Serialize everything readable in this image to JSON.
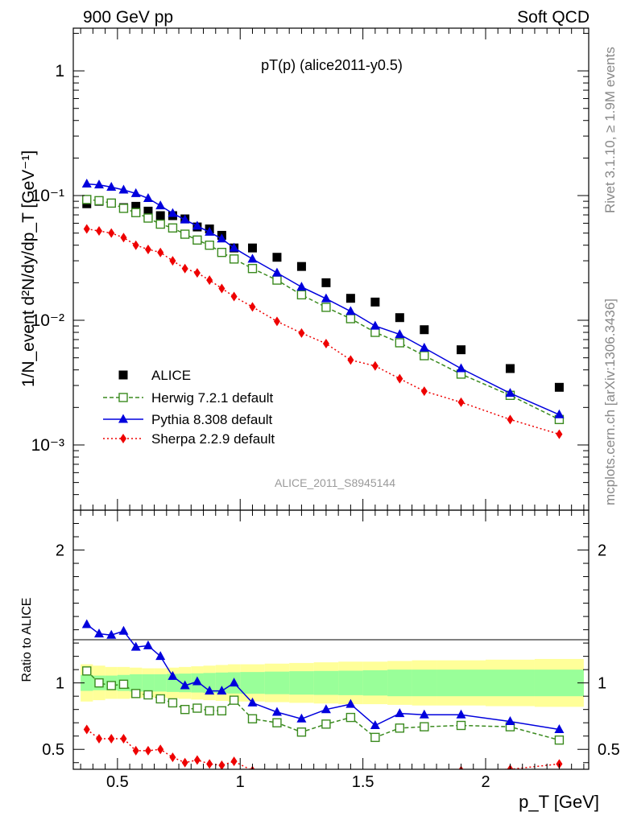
{
  "header": {
    "left": "900 GeV pp",
    "right": "Soft QCD"
  },
  "side_text": {
    "upper": "Rivet 3.1.10, ≥ 1.9M events",
    "lower": "mcplots.cern.ch [arXiv:1306.3436]"
  },
  "watermark": "ALICE_2011_S8945144",
  "chart_data": [
    {
      "type": "scatter",
      "title": "pT(p) (alice2011-y0.5)",
      "ylabel": "1/N_event d²N/dy/dp_T [GeV⁻¹]",
      "yscale": "log",
      "xlim": [
        0.32,
        2.42
      ],
      "ylim": [
        0.0003,
        2.2
      ],
      "yticks": [
        0.001,
        0.01,
        0.1,
        1
      ],
      "ytick_labels": [
        "10⁻³",
        "10⁻²",
        "10⁻¹",
        "1"
      ],
      "legend_position": "lower-left",
      "x": [
        0.375,
        0.425,
        0.475,
        0.525,
        0.575,
        0.625,
        0.675,
        0.725,
        0.775,
        0.825,
        0.875,
        0.925,
        0.975,
        1.05,
        1.15,
        1.25,
        1.35,
        1.45,
        1.55,
        1.65,
        1.75,
        1.9,
        2.1,
        2.3
      ],
      "series": [
        {
          "name": "ALICE",
          "color": "#000000",
          "marker": "square-filled",
          "line": "none",
          "values": [
            0.086,
            0.09,
            0.087,
            0.08,
            0.082,
            0.075,
            0.069,
            0.069,
            0.065,
            0.056,
            0.054,
            0.048,
            0.038,
            0.038,
            0.032,
            0.027,
            0.02,
            0.015,
            0.014,
            0.0105,
            0.0084,
            0.0058,
            0.0041,
            0.0029
          ]
        },
        {
          "name": "Herwig 7.2.1 default",
          "color": "#3a8a1e",
          "marker": "square-open",
          "line": "dashed",
          "values": [
            0.093,
            0.091,
            0.087,
            0.079,
            0.073,
            0.066,
            0.059,
            0.055,
            0.049,
            0.044,
            0.04,
            0.035,
            0.031,
            0.026,
            0.021,
            0.016,
            0.0127,
            0.0103,
            0.008,
            0.0066,
            0.0052,
            0.0037,
            0.0025,
            0.0016
          ]
        },
        {
          "name": "Pythia 8.308 default",
          "color": "#0000dd",
          "marker": "triangle-filled",
          "line": "solid",
          "values": [
            0.124,
            0.122,
            0.117,
            0.111,
            0.104,
            0.095,
            0.083,
            0.072,
            0.064,
            0.057,
            0.051,
            0.045,
            0.038,
            0.031,
            0.024,
            0.0185,
            0.0149,
            0.0118,
            0.009,
            0.0077,
            0.006,
            0.0041,
            0.0026,
            0.00175
          ]
        },
        {
          "name": "Sherpa 2.2.9 default",
          "color": "#ee0000",
          "marker": "diamond-filled",
          "line": "dotted",
          "values": [
            0.054,
            0.052,
            0.05,
            0.046,
            0.04,
            0.037,
            0.035,
            0.03,
            0.026,
            0.024,
            0.021,
            0.018,
            0.0155,
            0.0128,
            0.0098,
            0.0079,
            0.0065,
            0.0048,
            0.0043,
            0.0034,
            0.0027,
            0.0022,
            0.0016,
            0.00122
          ]
        }
      ]
    },
    {
      "type": "line",
      "ylabel": "Ratio to ALICE",
      "xlabel": "p_T [GeV]",
      "xlim": [
        0.32,
        2.42
      ],
      "ylim": [
        0.35,
        2.3
      ],
      "xticks": [
        0.5,
        1,
        1.5,
        2
      ],
      "xtick_labels": [
        "0.5",
        "1",
        "1.5",
        "2"
      ],
      "yticks": [
        0.5,
        1,
        2
      ],
      "ytick_labels": [
        "0.5",
        "1",
        "2"
      ],
      "x": [
        0.375,
        0.425,
        0.475,
        0.525,
        0.575,
        0.625,
        0.675,
        0.725,
        0.775,
        0.825,
        0.875,
        0.925,
        0.975,
        1.05,
        1.15,
        1.25,
        1.35,
        1.45,
        1.55,
        1.65,
        1.75,
        1.9,
        2.1,
        2.3
      ],
      "bin_edges": [
        0.35,
        0.4,
        0.45,
        0.5,
        0.55,
        0.6,
        0.65,
        0.7,
        0.75,
        0.8,
        0.85,
        0.9,
        0.95,
        1.0,
        1.1,
        1.2,
        1.3,
        1.4,
        1.5,
        1.6,
        1.7,
        1.8,
        2.0,
        2.2,
        2.4
      ],
      "bands": {
        "inner": {
          "color": "#99ff99",
          "half_width": [
            0.06,
            0.055,
            0.055,
            0.06,
            0.065,
            0.065,
            0.065,
            0.068,
            0.07,
            0.072,
            0.075,
            0.078,
            0.08,
            0.082,
            0.085,
            0.088,
            0.09,
            0.092,
            0.095,
            0.1,
            0.1,
            0.1,
            0.1,
            0.1
          ]
        },
        "outer": {
          "color": "#ffff99",
          "half_width": [
            0.14,
            0.13,
            0.12,
            0.12,
            0.115,
            0.11,
            0.11,
            0.115,
            0.12,
            0.125,
            0.13,
            0.135,
            0.14,
            0.14,
            0.145,
            0.15,
            0.155,
            0.16,
            0.16,
            0.165,
            0.17,
            0.17,
            0.175,
            0.18
          ]
        }
      },
      "series": [
        {
          "name": "Herwig 7.2.1 default",
          "color": "#3a8a1e",
          "marker": "square-open",
          "line": "dashed",
          "values": [
            1.09,
            1.0,
            0.98,
            0.99,
            0.92,
            0.91,
            0.88,
            0.85,
            0.8,
            0.81,
            0.79,
            0.79,
            0.87,
            0.73,
            0.7,
            0.63,
            0.69,
            0.74,
            0.59,
            0.66,
            0.67,
            0.68,
            0.67,
            0.57
          ]
        },
        {
          "name": "Pythia 8.308 default",
          "color": "#0000dd",
          "marker": "triangle-filled",
          "line": "solid",
          "values": [
            1.44,
            1.37,
            1.36,
            1.39,
            1.27,
            1.28,
            1.2,
            1.05,
            0.98,
            1.01,
            0.94,
            0.94,
            1.0,
            0.85,
            0.78,
            0.73,
            0.8,
            0.84,
            0.68,
            0.77,
            0.76,
            0.76,
            0.71,
            0.65
          ]
        },
        {
          "name": "Sherpa 2.2.9 default",
          "color": "#ee0000",
          "marker": "diamond-filled",
          "line": "dotted",
          "values": [
            0.65,
            0.58,
            0.58,
            0.58,
            0.49,
            0.49,
            0.5,
            0.44,
            0.4,
            0.42,
            0.39,
            0.38,
            0.41,
            0.34,
            0.31,
            0.29,
            0.32,
            0.32,
            0.31,
            0.32,
            0.32,
            0.34,
            0.35,
            0.39
          ]
        }
      ]
    }
  ]
}
